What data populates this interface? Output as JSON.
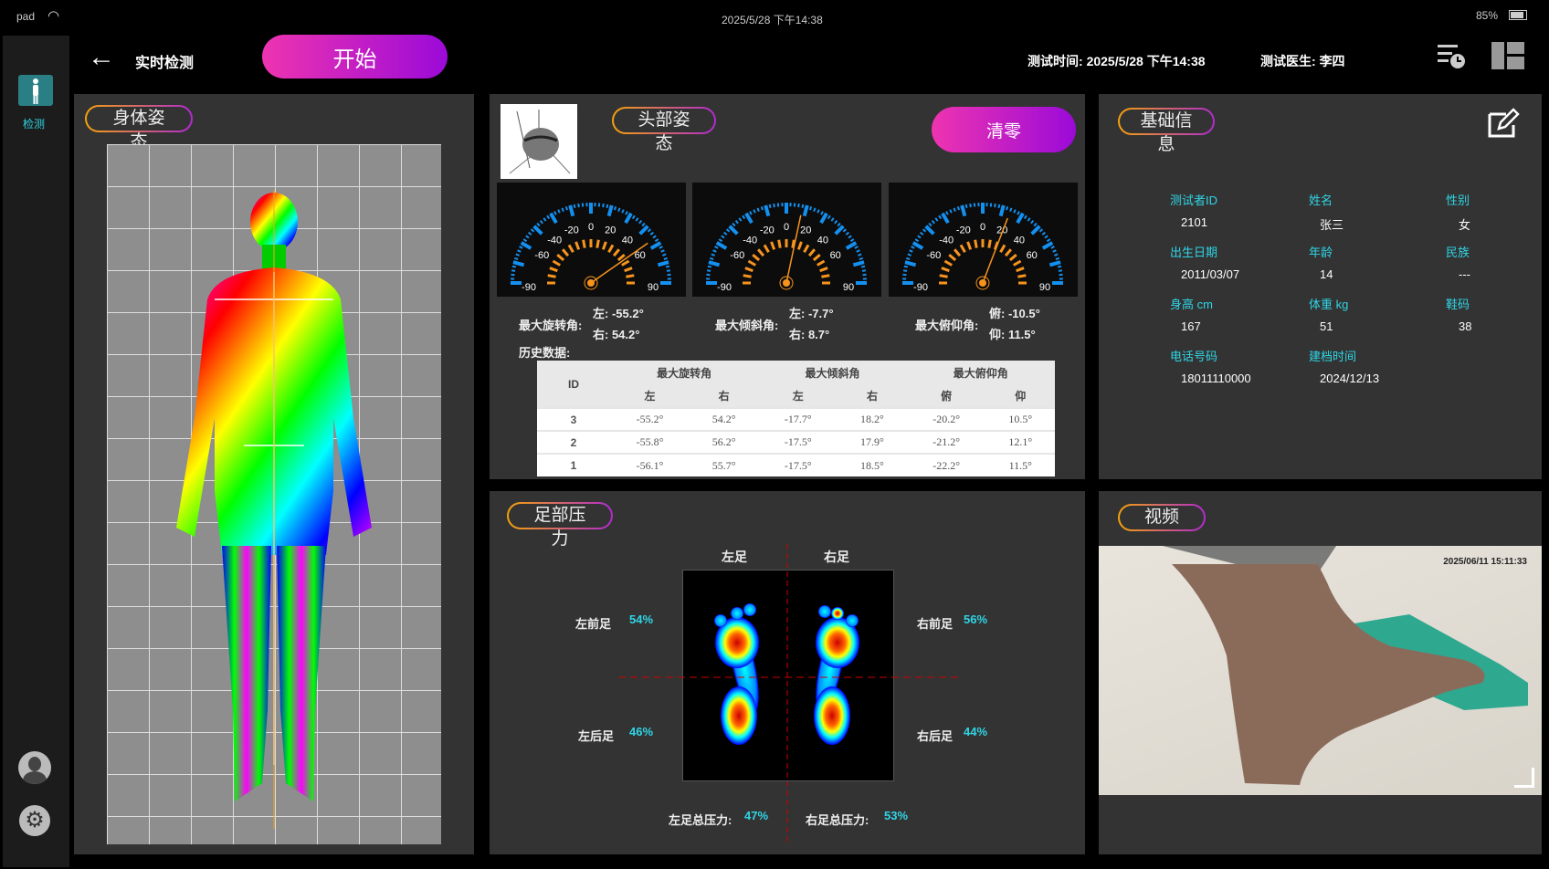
{
  "status_bar": {
    "device": "pad",
    "datetime": "2025/5/28  下午14:38",
    "battery": "85%"
  },
  "header": {
    "title": "实时检测",
    "start_label": "开始",
    "test_time_label": "测试时间:",
    "test_time": "2025/5/28  下午14:38",
    "doctor_label": "测试医生:",
    "doctor": "李四"
  },
  "nav": {
    "items": [
      {
        "label": "检测",
        "icon": "person-icon",
        "active": true
      }
    ]
  },
  "body_panel": {
    "title": "身体姿态"
  },
  "head_panel": {
    "title": "头部姿态",
    "reset_label": "清零",
    "gauges": [
      {
        "name": "rotation",
        "needle_value": 55,
        "ticks": [
          -90,
          -60,
          -40,
          -20,
          0,
          20,
          40,
          60,
          90
        ]
      },
      {
        "name": "tilt",
        "needle_value": 12,
        "ticks": [
          -90,
          -60,
          -40,
          -20,
          0,
          20,
          40,
          60,
          90
        ]
      },
      {
        "name": "pitch",
        "needle_value": 21,
        "ticks": [
          -90,
          -60,
          -40,
          -20,
          0,
          20,
          40,
          60,
          90
        ]
      }
    ],
    "readouts": [
      {
        "label": "最大旋转角:",
        "a": "左:  -55.2°",
        "b": "右:  54.2°"
      },
      {
        "label": "最大倾斜角:",
        "a": "左:  -7.7°",
        "b": "右:  8.7°"
      },
      {
        "label": "最大俯仰角:",
        "a": "俯:  -10.5°",
        "b": "仰:  11.5°"
      }
    ],
    "history_label": "历史数据:",
    "table": {
      "id_header": "ID",
      "groups": [
        "最大旋转角",
        "最大倾斜角",
        "最大俯仰角"
      ],
      "sub": [
        "左",
        "右",
        "左",
        "右",
        "俯",
        "仰"
      ],
      "rows": [
        [
          "3",
          "-55.2°",
          "54.2°",
          "-17.7°",
          "18.2°",
          "-20.2°",
          "10.5°"
        ],
        [
          "2",
          "-55.8°",
          "56.2°",
          "-17.5°",
          "17.9°",
          "-21.2°",
          "12.1°"
        ],
        [
          "1",
          "-56.1°",
          "55.7°",
          "-17.5°",
          "18.5°",
          "-22.2°",
          "11.5°"
        ]
      ]
    }
  },
  "info_panel": {
    "title": "基础信息",
    "fields": [
      {
        "label": "测试者ID",
        "value": "2101"
      },
      {
        "label": "姓名",
        "value": "张三"
      },
      {
        "label": "性别",
        "value": "女"
      },
      {
        "label": "出生日期",
        "value": "2011/03/07"
      },
      {
        "label": "年龄",
        "value": "14"
      },
      {
        "label": "民族",
        "value": "---"
      },
      {
        "label": "身高 cm",
        "value": "167"
      },
      {
        "label": "体重 kg",
        "value": "51"
      },
      {
        "label": "鞋码",
        "value": "38"
      },
      {
        "label": "电话号码",
        "value": "18011110000"
      },
      {
        "label": "建档时间",
        "value": "2024/12/13"
      }
    ]
  },
  "foot_panel": {
    "title": "足部压力",
    "left_label": "左足",
    "right_label": "右足",
    "left_fore": {
      "label": "左前足",
      "value": "54%"
    },
    "left_rear": {
      "label": "左后足",
      "value": "46%"
    },
    "right_fore": {
      "label": "右前足",
      "value": "56%"
    },
    "right_rear": {
      "label": "右后足",
      "value": "44%"
    },
    "left_total": {
      "label": "左足总压力:",
      "value": "47%"
    },
    "right_total": {
      "label": "右足总压力:",
      "value": "53%"
    }
  },
  "video_panel": {
    "title": "视频",
    "timestamp": "2025/06/11 15:11:33"
  },
  "colors": {
    "accent_cyan": "#2fd6e6",
    "gauge_blue": "#1490f0",
    "gauge_orange": "#f7941d",
    "button_start": "#ee34b0",
    "button_end": "#9b0ad8"
  }
}
